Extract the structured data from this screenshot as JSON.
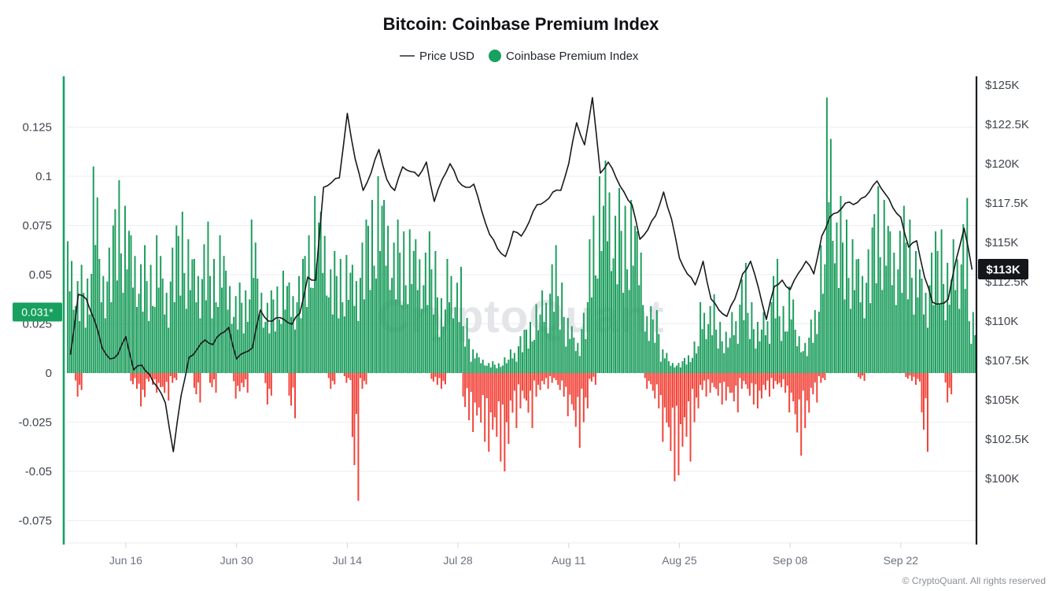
{
  "header": {
    "title": "Bitcoin: Coinbase Premium Index"
  },
  "legend": {
    "price_label": "Price USD",
    "premium_label": "Coinbase Premium Index"
  },
  "watermark": "CryptoQuant",
  "footer": {
    "copyright": "© CryptoQuant. All rights reserved"
  },
  "badges": {
    "premium_current": {
      "label": "0.031*",
      "value": 0.031,
      "color": "#18A05F",
      "text_color": "#ffffff"
    },
    "price_current": {
      "label": "$113K",
      "value": 113.3,
      "color": "#141619",
      "text_color": "#ffffff"
    }
  },
  "colors": {
    "premium_positive": "#1E9E5E",
    "premium_negative": "#F2443A",
    "price_line": "#17191c",
    "axis_left": "#18A05F",
    "axis_right": "#1b1d20",
    "grid": "#ededf0",
    "zero_line": "#d8dade",
    "tick_label": "#3f454e",
    "x_label": "#6b7280",
    "watermark_color": "#e4e5e9",
    "footer_color": "#8a8f98"
  },
  "chart_data": {
    "type": "bar+line",
    "title": "Bitcoin: Coinbase Premium Index",
    "start_date": "Jun 09",
    "end_date": "Oct 01",
    "grid": true,
    "legend_position": "top-center",
    "x_tick_labels": [
      {
        "label": "Jun 16",
        "day": 7
      },
      {
        "label": "Jun 30",
        "day": 21
      },
      {
        "label": "Jul 14",
        "day": 35
      },
      {
        "label": "Jul 28",
        "day": 49
      },
      {
        "label": "Aug 11",
        "day": 63
      },
      {
        "label": "Aug 25",
        "day": 77
      },
      {
        "label": "Sep 08",
        "day": 91
      },
      {
        "label": "Sep 22",
        "day": 105
      }
    ],
    "left_axis": {
      "name": "Coinbase Premium Index",
      "range": [
        -0.086,
        0.15
      ],
      "ticks": [
        {
          "label": "0.125",
          "value": 0.125
        },
        {
          "label": "0.1",
          "value": 0.1
        },
        {
          "label": "0.075",
          "value": 0.075
        },
        {
          "label": "0.05",
          "value": 0.05
        },
        {
          "label": "0.025",
          "value": 0.025
        },
        {
          "label": "0",
          "value": 0
        },
        {
          "label": "-0.025",
          "value": -0.025
        },
        {
          "label": "-0.05",
          "value": -0.05
        },
        {
          "label": "-0.075",
          "value": -0.075
        }
      ]
    },
    "right_axis": {
      "name": "Price USD",
      "range_kusd": [
        95.9,
        125.4
      ],
      "ticks": [
        {
          "label": "$125K",
          "value": 125
        },
        {
          "label": "$122.5K",
          "value": 122.5
        },
        {
          "label": "$120K",
          "value": 120
        },
        {
          "label": "$117.5K",
          "value": 117.5
        },
        {
          "label": "$115K",
          "value": 115
        },
        {
          "label": "$112.5K",
          "value": 112.5
        },
        {
          "label": "$110K",
          "value": 110
        },
        {
          "label": "$107.5K",
          "value": 107.5
        },
        {
          "label": "$105K",
          "value": 105
        },
        {
          "label": "$102.5K",
          "value": 102.5
        },
        {
          "label": "$100K",
          "value": 100
        }
      ]
    },
    "series": [
      {
        "name": "Price USD",
        "type": "line",
        "unit": "kUSD",
        "values": [
          107.9,
          111.7,
          111.4,
          110.1,
          108.3,
          107.6,
          107.9,
          109.0,
          106.9,
          107.2,
          106.6,
          105.8,
          104.8,
          101.7,
          105.3,
          107.7,
          108.2,
          108.8,
          108.5,
          109.2,
          109.6,
          107.6,
          108.0,
          108.3,
          110.7,
          110.0,
          110.2,
          110.1,
          109.8,
          110.5,
          112.8,
          112.6,
          118.5,
          118.8,
          119.1,
          123.2,
          120.3,
          118.3,
          119.4,
          120.9,
          119.0,
          118.3,
          119.8,
          119.5,
          119.2,
          120.1,
          117.6,
          119.0,
          120.0,
          118.9,
          118.5,
          118.7,
          117.0,
          115.5,
          114.6,
          114.1,
          115.7,
          115.4,
          116.3,
          117.4,
          117.6,
          118.2,
          118.3,
          120.0,
          122.6,
          121.2,
          124.2,
          119.4,
          120.1,
          119.1,
          118.2,
          117.4,
          115.2,
          115.8,
          116.7,
          118.2,
          116.5,
          114.0,
          113.0,
          112.3,
          113.8,
          111.4,
          110.7,
          110.3,
          111.4,
          113.0,
          113.8,
          112.1,
          110.1,
          112.2,
          112.6,
          112.0,
          113.0,
          113.8,
          113.0,
          115.4,
          116.6,
          116.9,
          117.5,
          117.4,
          117.8,
          118.2,
          118.9,
          118.1,
          117.2,
          116.6,
          114.7,
          115.1,
          112.8,
          111.2,
          111.1,
          111.4,
          113.9,
          115.9,
          113.3
        ]
      },
      {
        "name": "Coinbase Premium Index (daily peak, positive)",
        "type": "bar",
        "values": [
          0.067,
          0.055,
          0.048,
          0.105,
          0.058,
          0.075,
          0.098,
          0.085,
          0.07,
          0.065,
          0.055,
          0.07,
          0.048,
          0.075,
          0.082,
          0.068,
          0.058,
          0.077,
          0.058,
          0.07,
          0.052,
          0.046,
          0.042,
          0.078,
          0.048,
          0.042,
          0.044,
          0.052,
          0.046,
          0.058,
          0.07,
          0.09,
          0.082,
          0.062,
          0.058,
          0.06,
          0.055,
          0.078,
          0.088,
          0.1,
          0.088,
          0.078,
          0.072,
          0.073,
          0.068,
          0.072,
          0.062,
          0.038,
          0.058,
          0.054,
          0.028,
          0.012,
          0.008,
          0.006,
          0.005,
          0.008,
          0.012,
          0.022,
          0.026,
          0.035,
          0.042,
          0.065,
          0.046,
          0.028,
          0.018,
          0.036,
          0.08,
          0.1,
          0.108,
          0.094,
          0.085,
          0.088,
          0.072,
          0.034,
          0.032,
          0.012,
          0.006,
          0.006,
          0.009,
          0.016,
          0.036,
          0.04,
          0.026,
          0.021,
          0.031,
          0.056,
          0.036,
          0.026,
          0.031,
          0.058,
          0.034,
          0.044,
          0.022,
          0.018,
          0.032,
          0.065,
          0.14,
          0.09,
          0.078,
          0.068,
          0.058,
          0.074,
          0.095,
          0.088,
          0.072,
          0.085,
          0.078,
          0.062,
          0.048,
          0.072,
          0.073,
          0.056,
          0.068,
          0.089,
          0.031
        ]
      },
      {
        "name": "Coinbase Premium Index (daily peak, negative)",
        "type": "bar",
        "values": [
          0,
          -0.012,
          0,
          0,
          0,
          0,
          0,
          0,
          -0.008,
          -0.017,
          -0.006,
          -0.01,
          -0.014,
          -0.005,
          0,
          0,
          -0.015,
          0,
          -0.01,
          0,
          0,
          -0.013,
          -0.01,
          0,
          0,
          -0.016,
          0,
          0,
          -0.023,
          0,
          0,
          0,
          0,
          -0.008,
          0,
          -0.005,
          -0.065,
          -0.008,
          0,
          0,
          0,
          0,
          0,
          0,
          0,
          0,
          -0.006,
          -0.008,
          0,
          0,
          -0.024,
          -0.03,
          -0.035,
          -0.04,
          -0.045,
          -0.05,
          -0.028,
          -0.018,
          -0.028,
          -0.012,
          -0.008,
          -0.005,
          -0.012,
          -0.022,
          -0.038,
          -0.025,
          -0.006,
          0,
          0,
          0,
          0,
          0,
          0,
          -0.008,
          -0.018,
          -0.035,
          -0.055,
          -0.052,
          -0.045,
          -0.025,
          -0.012,
          -0.01,
          -0.016,
          -0.014,
          -0.02,
          -0.008,
          -0.016,
          -0.018,
          -0.012,
          -0.008,
          -0.01,
          -0.02,
          -0.042,
          -0.028,
          -0.015,
          -0.005,
          0,
          0,
          0,
          0,
          -0.004,
          0,
          0,
          0,
          0,
          0,
          -0.004,
          -0.006,
          -0.04,
          0,
          0,
          -0.015,
          0,
          0,
          0
        ]
      }
    ]
  }
}
